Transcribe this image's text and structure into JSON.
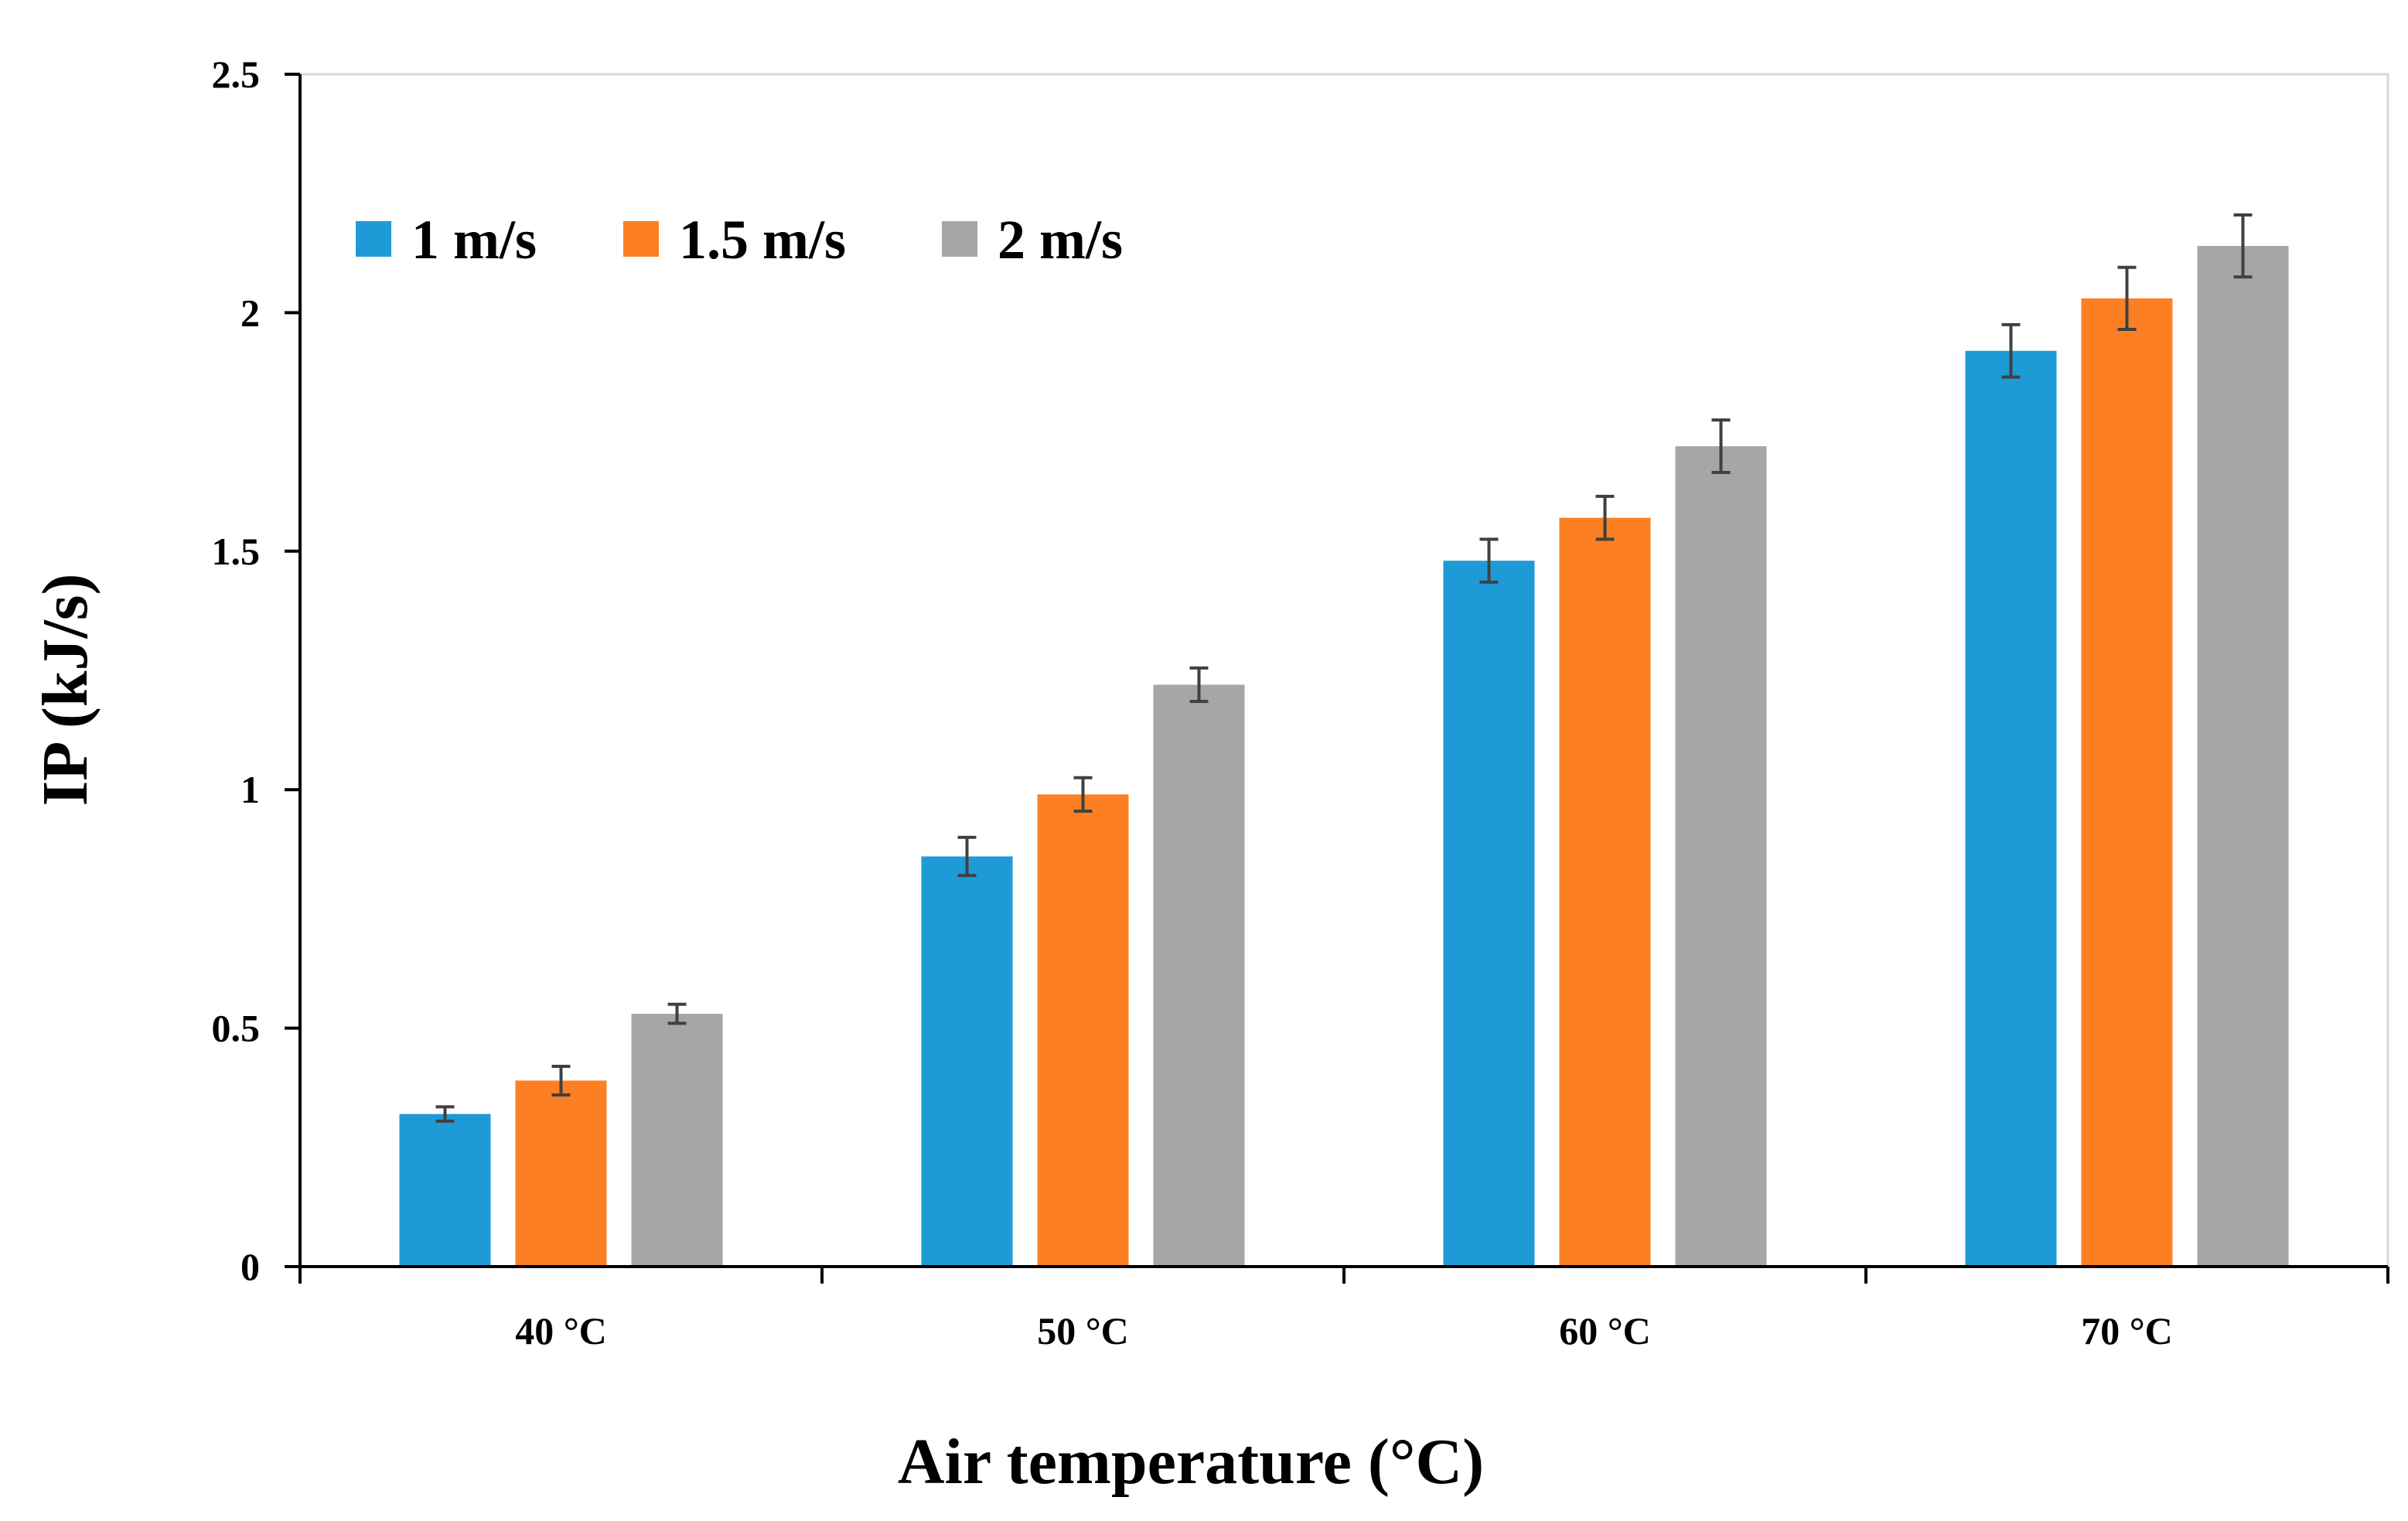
{
  "chart_data": {
    "type": "bar",
    "title": "",
    "xlabel": "Air temperature (°C)",
    "ylabel": "IP (kJ/s)",
    "categories": [
      "40 °C",
      "50 °C",
      "60 °C",
      "70 °C"
    ],
    "ylim": [
      0,
      2.5
    ],
    "yticks": [
      0,
      0.5,
      1,
      1.5,
      2,
      2.5
    ],
    "ytick_labels": [
      "0",
      "0.5",
      "1",
      "1.5",
      "2",
      "2.5"
    ],
    "grid": false,
    "legend_position": "top-left",
    "series": [
      {
        "name": "1 m/s",
        "color": "#1e9bd7",
        "values": [
          0.32,
          0.86,
          1.48,
          1.92
        ],
        "errors": [
          0.015,
          0.04,
          0.045,
          0.055
        ]
      },
      {
        "name": "1.5 m/s",
        "color": "#fd7f23",
        "values": [
          0.39,
          0.99,
          1.57,
          2.03
        ],
        "errors": [
          0.03,
          0.035,
          0.045,
          0.065
        ]
      },
      {
        "name": "2 m/s",
        "color": "#a6a6a6",
        "values": [
          0.53,
          1.22,
          1.72,
          2.14
        ],
        "errors": [
          0.02,
          0.035,
          0.055,
          0.065
        ]
      }
    ],
    "error_bar_color": "#404040"
  }
}
